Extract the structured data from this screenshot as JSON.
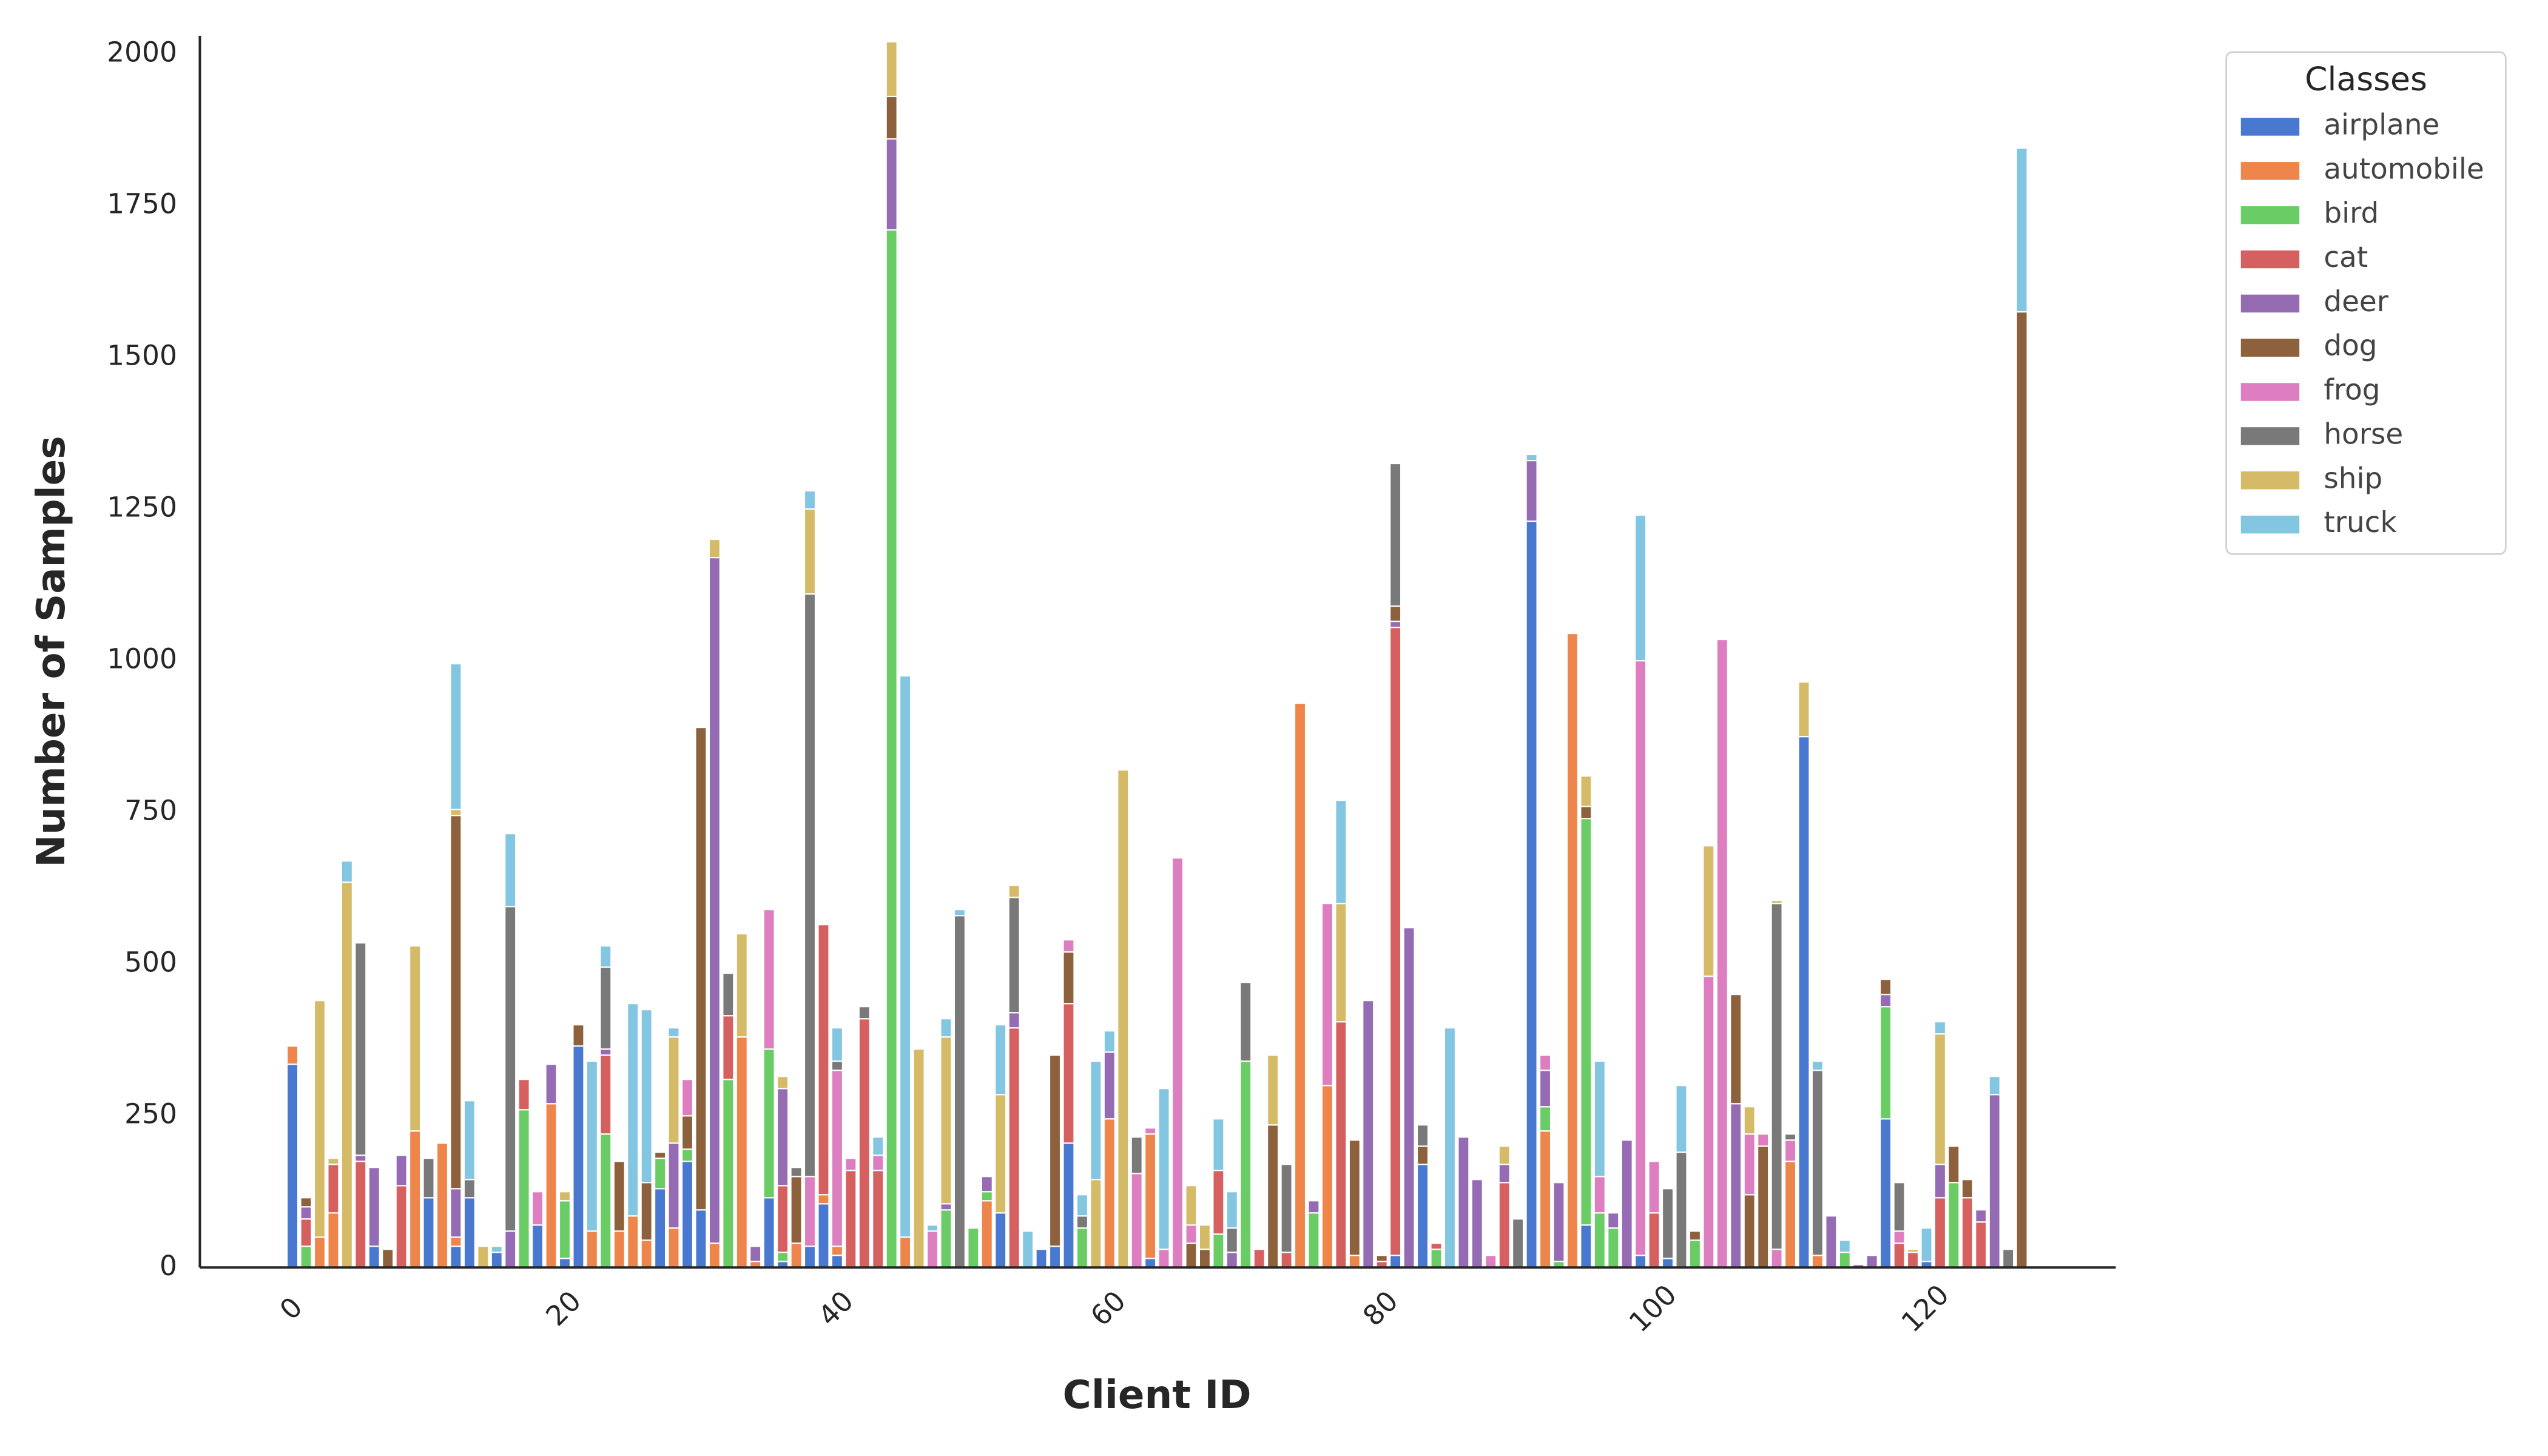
{
  "chart_data": {
    "type": "bar",
    "stacked": true,
    "xlabel": "Client ID",
    "ylabel": "Number of Samples",
    "legend_title": "Classes",
    "legend": "upper right outside",
    "grid": false,
    "x": [
      0,
      1,
      2,
      3,
      4,
      5,
      6,
      7,
      8,
      9,
      10,
      11,
      12,
      13,
      14,
      15,
      16,
      17,
      18,
      19,
      20,
      21,
      22,
      23,
      24,
      25,
      26,
      27,
      28,
      29,
      30,
      31,
      32,
      33,
      34,
      35,
      36,
      37,
      38,
      39,
      40,
      41,
      42,
      43,
      44,
      45,
      46,
      47,
      48,
      49,
      50,
      51,
      52,
      53,
      54,
      55,
      56,
      57,
      58,
      59,
      60,
      61,
      62,
      63,
      64,
      65,
      66,
      67,
      68,
      69,
      70,
      71,
      72,
      73,
      74,
      75,
      76,
      77,
      78,
      79,
      80,
      81,
      82,
      83,
      84,
      85,
      86,
      87,
      88,
      89,
      90,
      91,
      92,
      93,
      94,
      95,
      96,
      97,
      98,
      99,
      100,
      101,
      102,
      103,
      104,
      105,
      106,
      107,
      108,
      109,
      110,
      111,
      112,
      113,
      114,
      115,
      116,
      117,
      118,
      119,
      120,
      121,
      122,
      123,
      124,
      125,
      126,
      127
    ],
    "xlim": [
      -6.8,
      133.9
    ],
    "xticks": [
      0,
      20,
      40,
      60,
      80,
      100,
      120
    ],
    "ylim": [
      0,
      2030
    ],
    "yticks": [
      0,
      250,
      500,
      750,
      1000,
      1250,
      1500,
      1750,
      2000
    ],
    "series": [
      {
        "name": "airplane",
        "color": "#4878d0",
        "values": [
          335,
          0,
          0,
          0,
          0,
          0,
          35,
          0,
          0,
          0,
          115,
          0,
          35,
          115,
          0,
          25,
          0,
          0,
          70,
          0,
          15,
          365,
          0,
          0,
          0,
          0,
          0,
          130,
          0,
          175,
          95,
          0,
          0,
          0,
          0,
          115,
          10,
          0,
          35,
          105,
          20,
          0,
          0,
          0,
          0,
          0,
          0,
          0,
          0,
          0,
          0,
          0,
          90,
          0,
          0,
          30,
          35,
          205,
          0,
          0,
          0,
          0,
          0,
          15,
          0,
          0,
          0,
          0,
          0,
          0,
          0,
          0,
          0,
          0,
          0,
          0,
          0,
          0,
          0,
          0,
          0,
          20,
          0,
          170,
          0,
          0,
          0,
          0,
          0,
          0,
          0,
          1230,
          0,
          0,
          0,
          70,
          0,
          0,
          0,
          20,
          0,
          15,
          0,
          0,
          0,
          0,
          0,
          0,
          0,
          0,
          0,
          875,
          0,
          0,
          0,
          0,
          0,
          245,
          0,
          0,
          10,
          0,
          0,
          0,
          0,
          0,
          0,
          0
        ]
      },
      {
        "name": "automobile",
        "color": "#ee854a",
        "values": [
          30,
          0,
          50,
          90,
          0,
          0,
          0,
          0,
          0,
          225,
          0,
          205,
          15,
          0,
          0,
          0,
          0,
          0,
          0,
          270,
          0,
          0,
          60,
          0,
          60,
          85,
          45,
          0,
          65,
          0,
          0,
          40,
          0,
          380,
          10,
          0,
          0,
          40,
          0,
          15,
          15,
          0,
          0,
          0,
          0,
          50,
          0,
          0,
          0,
          0,
          0,
          110,
          0,
          0,
          0,
          0,
          0,
          0,
          0,
          0,
          245,
          0,
          0,
          205,
          0,
          0,
          0,
          0,
          0,
          0,
          0,
          0,
          0,
          0,
          930,
          0,
          300,
          0,
          20,
          0,
          0,
          0,
          0,
          0,
          0,
          0,
          0,
          0,
          0,
          0,
          0,
          0,
          225,
          0,
          1045,
          0,
          0,
          0,
          0,
          0,
          0,
          0,
          0,
          0,
          0,
          0,
          0,
          0,
          0,
          0,
          175,
          0,
          20,
          0,
          0,
          0,
          0,
          0,
          0,
          0,
          0,
          0,
          0,
          0,
          0,
          0,
          0,
          0
        ]
      },
      {
        "name": "bird",
        "color": "#6acc64",
        "values": [
          0,
          35,
          0,
          0,
          0,
          0,
          0,
          0,
          0,
          0,
          0,
          0,
          0,
          0,
          0,
          0,
          0,
          260,
          0,
          0,
          95,
          0,
          0,
          220,
          0,
          0,
          0,
          50,
          0,
          20,
          0,
          0,
          310,
          0,
          0,
          245,
          15,
          0,
          0,
          0,
          0,
          0,
          0,
          0,
          1710,
          0,
          0,
          0,
          95,
          0,
          65,
          15,
          0,
          0,
          0,
          0,
          0,
          0,
          65,
          0,
          0,
          0,
          0,
          0,
          0,
          0,
          0,
          0,
          55,
          0,
          340,
          0,
          0,
          0,
          0,
          90,
          0,
          0,
          0,
          0,
          0,
          0,
          0,
          0,
          30,
          0,
          0,
          0,
          0,
          0,
          0,
          0,
          40,
          10,
          0,
          670,
          90,
          65,
          0,
          0,
          0,
          0,
          0,
          45,
          0,
          0,
          0,
          0,
          0,
          0,
          0,
          0,
          0,
          0,
          25,
          0,
          0,
          185,
          0,
          0,
          0,
          0,
          140,
          0,
          0,
          0,
          0,
          0
        ]
      },
      {
        "name": "cat",
        "color": "#d65f5f",
        "values": [
          0,
          45,
          0,
          80,
          0,
          175,
          0,
          0,
          135,
          0,
          0,
          0,
          0,
          0,
          0,
          0,
          0,
          50,
          0,
          0,
          0,
          0,
          0,
          130,
          0,
          0,
          0,
          0,
          0,
          0,
          0,
          0,
          105,
          0,
          0,
          0,
          110,
          0,
          0,
          445,
          0,
          160,
          410,
          160,
          0,
          0,
          0,
          0,
          0,
          0,
          0,
          0,
          0,
          395,
          0,
          0,
          0,
          230,
          0,
          0,
          0,
          0,
          0,
          0,
          0,
          0,
          0,
          0,
          105,
          0,
          0,
          30,
          0,
          25,
          0,
          0,
          0,
          405,
          0,
          0,
          10,
          1035,
          0,
          0,
          10,
          0,
          0,
          0,
          0,
          140,
          0,
          0,
          0,
          0,
          0,
          0,
          0,
          0,
          0,
          0,
          90,
          0,
          0,
          0,
          0,
          0,
          0,
          0,
          0,
          0,
          0,
          0,
          0,
          0,
          0,
          0,
          0,
          0,
          40,
          25,
          0,
          115,
          0,
          115,
          75,
          0,
          0,
          0
        ]
      },
      {
        "name": "deer",
        "color": "#956cb4",
        "values": [
          0,
          20,
          0,
          0,
          0,
          10,
          130,
          0,
          50,
          0,
          0,
          0,
          80,
          0,
          0,
          0,
          60,
          0,
          0,
          65,
          0,
          0,
          0,
          10,
          0,
          0,
          0,
          0,
          140,
          0,
          0,
          1130,
          0,
          0,
          25,
          0,
          160,
          0,
          0,
          0,
          0,
          0,
          0,
          0,
          150,
          0,
          0,
          0,
          10,
          0,
          0,
          25,
          0,
          25,
          0,
          0,
          0,
          0,
          0,
          0,
          110,
          0,
          0,
          0,
          0,
          0,
          0,
          0,
          0,
          25,
          0,
          0,
          0,
          0,
          0,
          20,
          0,
          0,
          0,
          440,
          0,
          10,
          560,
          0,
          0,
          0,
          215,
          145,
          0,
          30,
          0,
          100,
          60,
          130,
          0,
          0,
          0,
          25,
          210,
          0,
          0,
          0,
          0,
          0,
          0,
          0,
          270,
          0,
          0,
          0,
          0,
          0,
          0,
          85,
          0,
          5,
          20,
          20,
          0,
          0,
          0,
          55,
          0,
          0,
          20,
          285,
          0,
          0
        ]
      },
      {
        "name": "dog",
        "color": "#8c613c",
        "values": [
          0,
          15,
          0,
          0,
          0,
          0,
          0,
          30,
          0,
          0,
          0,
          0,
          615,
          0,
          0,
          0,
          0,
          0,
          0,
          0,
          0,
          35,
          0,
          0,
          115,
          0,
          95,
          10,
          0,
          55,
          795,
          0,
          0,
          0,
          0,
          0,
          0,
          110,
          0,
          0,
          0,
          0,
          0,
          0,
          70,
          0,
          0,
          0,
          0,
          0,
          0,
          0,
          0,
          0,
          0,
          0,
          315,
          85,
          0,
          0,
          0,
          0,
          0,
          0,
          0,
          0,
          40,
          30,
          0,
          0,
          0,
          0,
          235,
          0,
          0,
          0,
          0,
          0,
          190,
          0,
          10,
          25,
          0,
          30,
          0,
          0,
          0,
          0,
          0,
          0,
          0,
          0,
          0,
          0,
          0,
          20,
          0,
          0,
          0,
          0,
          0,
          0,
          0,
          15,
          0,
          0,
          180,
          120,
          200,
          0,
          0,
          0,
          0,
          0,
          0,
          0,
          0,
          25,
          0,
          0,
          0,
          0,
          60,
          30,
          0,
          0,
          0,
          1575
        ]
      },
      {
        "name": "frog",
        "color": "#dc7ec0",
        "values": [
          0,
          0,
          0,
          0,
          0,
          0,
          0,
          0,
          0,
          0,
          0,
          0,
          0,
          0,
          0,
          0,
          0,
          0,
          55,
          0,
          0,
          0,
          0,
          0,
          0,
          0,
          0,
          0,
          0,
          60,
          0,
          0,
          0,
          0,
          0,
          230,
          0,
          0,
          115,
          0,
          290,
          20,
          0,
          25,
          0,
          0,
          0,
          60,
          0,
          0,
          0,
          0,
          0,
          0,
          0,
          0,
          0,
          20,
          0,
          0,
          0,
          0,
          155,
          10,
          30,
          675,
          30,
          0,
          0,
          0,
          0,
          0,
          0,
          0,
          0,
          0,
          300,
          0,
          0,
          0,
          0,
          0,
          0,
          0,
          0,
          0,
          0,
          0,
          20,
          0,
          0,
          0,
          25,
          0,
          0,
          0,
          60,
          0,
          0,
          980,
          85,
          0,
          0,
          0,
          480,
          1035,
          0,
          100,
          20,
          30,
          35,
          0,
          0,
          0,
          0,
          0,
          0,
          0,
          20,
          0,
          0,
          0,
          0,
          0,
          0,
          0,
          0,
          0
        ]
      },
      {
        "name": "horse",
        "color": "#797979",
        "values": [
          0,
          0,
          0,
          0,
          0,
          350,
          0,
          0,
          0,
          0,
          65,
          0,
          0,
          30,
          0,
          0,
          535,
          0,
          0,
          0,
          0,
          0,
          0,
          135,
          0,
          0,
          0,
          0,
          0,
          0,
          0,
          0,
          70,
          0,
          0,
          0,
          0,
          15,
          960,
          0,
          15,
          0,
          20,
          0,
          0,
          0,
          0,
          0,
          0,
          580,
          0,
          0,
          0,
          190,
          0,
          0,
          0,
          0,
          20,
          0,
          0,
          0,
          60,
          0,
          0,
          0,
          0,
          0,
          0,
          40,
          130,
          0,
          0,
          145,
          0,
          0,
          0,
          0,
          0,
          0,
          0,
          235,
          0,
          35,
          0,
          0,
          0,
          0,
          0,
          0,
          80,
          0,
          0,
          0,
          0,
          0,
          0,
          0,
          0,
          0,
          0,
          115,
          190,
          0,
          0,
          0,
          0,
          0,
          0,
          570,
          10,
          0,
          305,
          0,
          0,
          0,
          0,
          0,
          80,
          0,
          0,
          0,
          0,
          0,
          0,
          0,
          30,
          0
        ]
      },
      {
        "name": "ship",
        "color": "#d5bb67",
        "values": [
          0,
          0,
          390,
          10,
          635,
          0,
          0,
          0,
          0,
          305,
          0,
          0,
          10,
          0,
          35,
          0,
          0,
          0,
          0,
          0,
          15,
          0,
          0,
          0,
          0,
          0,
          0,
          0,
          175,
          0,
          0,
          30,
          0,
          170,
          0,
          0,
          20,
          0,
          140,
          0,
          0,
          0,
          0,
          0,
          90,
          0,
          360,
          0,
          275,
          0,
          0,
          0,
          195,
          20,
          0,
          0,
          0,
          0,
          0,
          145,
          0,
          820,
          0,
          0,
          0,
          0,
          65,
          40,
          0,
          0,
          0,
          0,
          115,
          0,
          0,
          0,
          0,
          195,
          0,
          0,
          0,
          0,
          0,
          0,
          0,
          0,
          0,
          0,
          0,
          30,
          0,
          0,
          0,
          0,
          0,
          50,
          0,
          0,
          0,
          0,
          0,
          0,
          0,
          0,
          215,
          0,
          0,
          45,
          0,
          5,
          0,
          90,
          0,
          0,
          0,
          0,
          0,
          0,
          0,
          5,
          0,
          215,
          0,
          0,
          0,
          0,
          0,
          0
        ]
      },
      {
        "name": "truck",
        "color": "#82c6e2",
        "values": [
          0,
          0,
          0,
          0,
          35,
          0,
          0,
          0,
          0,
          0,
          0,
          0,
          240,
          130,
          0,
          10,
          120,
          0,
          0,
          0,
          0,
          0,
          280,
          35,
          0,
          350,
          285,
          0,
          15,
          0,
          0,
          0,
          0,
          0,
          0,
          0,
          0,
          0,
          30,
          0,
          55,
          0,
          0,
          30,
          0,
          925,
          0,
          10,
          30,
          10,
          0,
          0,
          115,
          0,
          60,
          0,
          0,
          0,
          35,
          195,
          35,
          0,
          0,
          0,
          265,
          0,
          0,
          0,
          85,
          60,
          0,
          0,
          0,
          0,
          0,
          0,
          0,
          170,
          0,
          0,
          0,
          0,
          0,
          0,
          0,
          395,
          0,
          0,
          0,
          0,
          0,
          10,
          0,
          0,
          0,
          0,
          190,
          0,
          0,
          240,
          0,
          0,
          110,
          0,
          0,
          0,
          0,
          0,
          0,
          0,
          0,
          0,
          15,
          0,
          20,
          0,
          0,
          0,
          0,
          0,
          55,
          20,
          0,
          0,
          0,
          30,
          0,
          270
        ]
      }
    ]
  }
}
